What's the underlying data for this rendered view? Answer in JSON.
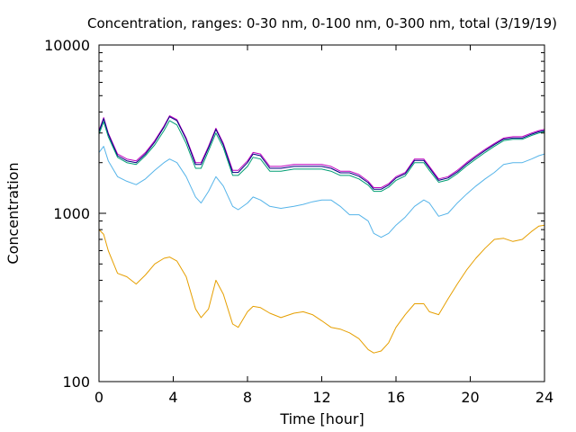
{
  "chart_data": {
    "type": "line",
    "title": "Concentration, ranges: 0-30 nm, 0-100 nm, 0-300 nm, total (3/19/19)",
    "xlabel": "Time [hour]",
    "ylabel": "Concentration",
    "xlim": [
      0,
      24
    ],
    "ylim": [
      100,
      10000
    ],
    "yscale": "log",
    "grid": false,
    "legend": "none",
    "x_ticks": [
      "0",
      "4",
      "8",
      "12",
      "16",
      "20",
      "24"
    ],
    "y_ticks": [
      "100",
      "1000",
      "10000"
    ],
    "x": [
      0,
      0.25,
      0.5,
      1,
      1.5,
      2,
      2.5,
      3,
      3.5,
      3.8,
      4.2,
      4.7,
      5.2,
      5.5,
      5.9,
      6.3,
      6.7,
      7.2,
      7.5,
      8,
      8.3,
      8.7,
      9.2,
      9.8,
      10.5,
      11,
      11.5,
      12,
      12.5,
      13,
      13.5,
      14,
      14.5,
      14.8,
      15.2,
      15.6,
      16,
      16.5,
      17,
      17.5,
      17.8,
      18.3,
      18.8,
      19.3,
      19.8,
      20.3,
      20.8,
      21.3,
      21.8,
      22.3,
      22.8,
      23.3,
      23.7,
      24
    ],
    "series": [
      {
        "color": "#c000c0",
        "values": [
          3100,
          3700,
          3000,
          2250,
          2100,
          2050,
          2300,
          2700,
          3300,
          3800,
          3600,
          2800,
          2000,
          2000,
          2500,
          3200,
          2600,
          1800,
          1800,
          2050,
          2300,
          2250,
          1900,
          1900,
          1950,
          1950,
          1950,
          1950,
          1900,
          1780,
          1780,
          1700,
          1550,
          1420,
          1420,
          1500,
          1650,
          1750,
          2100,
          2100,
          1900,
          1600,
          1650,
          1800,
          2000,
          2200,
          2400,
          2600,
          2800,
          2850,
          2850,
          3000,
          3100,
          3150
        ]
      },
      {
        "color": "#000080",
        "values": [
          3050,
          3650,
          2950,
          2200,
          2050,
          2000,
          2250,
          2650,
          3250,
          3750,
          3550,
          2750,
          1950,
          1950,
          2450,
          3150,
          2550,
          1750,
          1750,
          2000,
          2250,
          2200,
          1850,
          1850,
          1900,
          1900,
          1900,
          1900,
          1850,
          1740,
          1740,
          1660,
          1520,
          1390,
          1390,
          1470,
          1620,
          1720,
          2060,
          2060,
          1860,
          1570,
          1620,
          1760,
          1960,
          2160,
          2360,
          2560,
          2760,
          2800,
          2800,
          2950,
          3050,
          3100
        ]
      },
      {
        "color": "#009e73",
        "values": [
          2950,
          3500,
          2850,
          2150,
          2000,
          1950,
          2200,
          2550,
          3100,
          3550,
          3350,
          2600,
          1850,
          1850,
          2350,
          3000,
          2450,
          1680,
          1680,
          1900,
          2150,
          2100,
          1780,
          1780,
          1830,
          1830,
          1830,
          1830,
          1780,
          1680,
          1680,
          1600,
          1470,
          1350,
          1350,
          1430,
          1570,
          1670,
          2000,
          2000,
          1800,
          1530,
          1580,
          1720,
          1910,
          2100,
          2300,
          2500,
          2700,
          2750,
          2750,
          2900,
          3000,
          3050
        ]
      },
      {
        "color": "#56b4e9",
        "values": [
          2300,
          2500,
          2050,
          1650,
          1550,
          1480,
          1600,
          1800,
          2000,
          2100,
          2000,
          1650,
          1250,
          1150,
          1350,
          1650,
          1450,
          1100,
          1050,
          1150,
          1250,
          1200,
          1100,
          1070,
          1100,
          1130,
          1170,
          1200,
          1200,
          1100,
          980,
          980,
          900,
          760,
          720,
          760,
          850,
          950,
          1100,
          1200,
          1150,
          960,
          1000,
          1150,
          1300,
          1450,
          1600,
          1750,
          1950,
          2000,
          2000,
          2100,
          2200,
          2250
        ]
      },
      {
        "color": "#e69f00",
        "values": [
          800,
          750,
          600,
          440,
          420,
          380,
          430,
          500,
          540,
          550,
          520,
          420,
          270,
          240,
          270,
          400,
          330,
          220,
          210,
          260,
          280,
          275,
          255,
          240,
          255,
          260,
          250,
          230,
          210,
          205,
          195,
          180,
          155,
          148,
          152,
          170,
          210,
          250,
          290,
          290,
          260,
          250,
          310,
          380,
          460,
          540,
          620,
          700,
          710,
          680,
          700,
          780,
          840,
          850
        ]
      }
    ]
  }
}
